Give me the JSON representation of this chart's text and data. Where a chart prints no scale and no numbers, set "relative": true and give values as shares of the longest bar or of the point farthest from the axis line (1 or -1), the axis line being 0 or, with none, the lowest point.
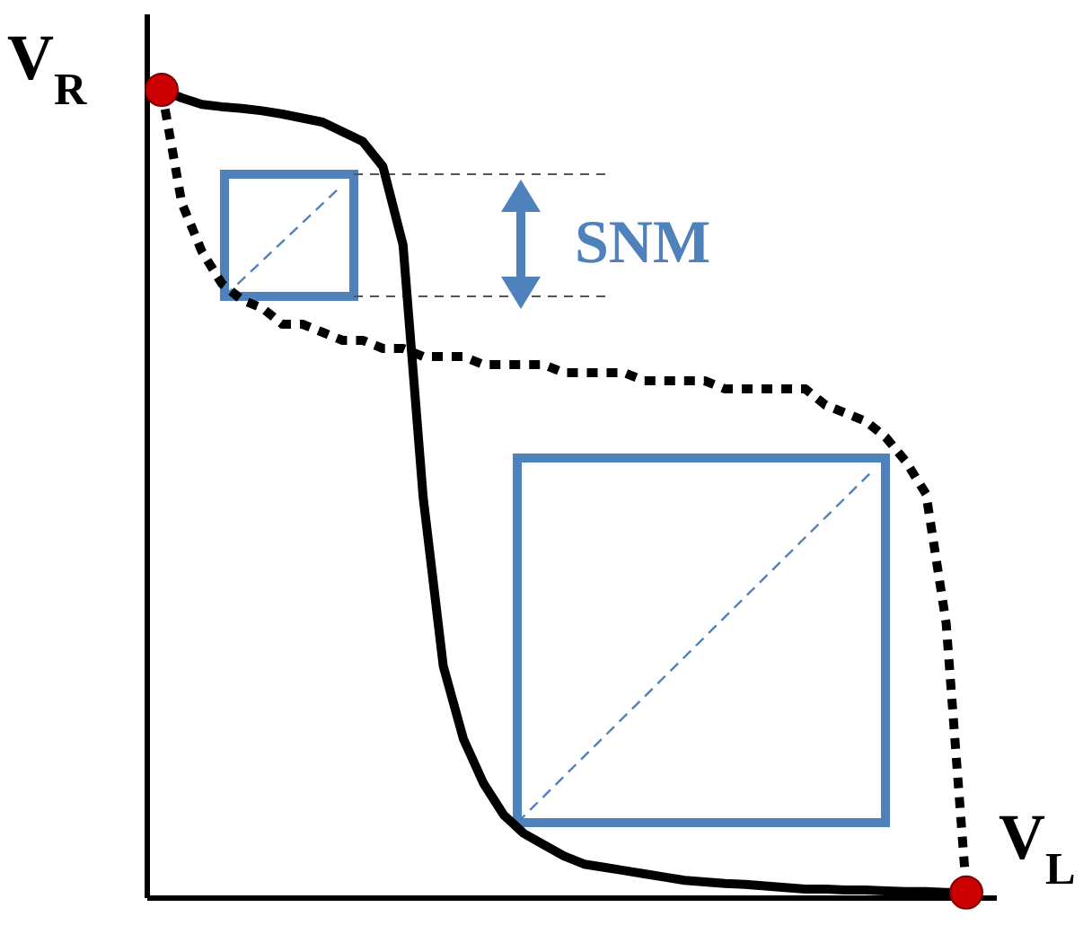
{
  "chart_data": {
    "type": "line",
    "relative": true,
    "xlabel": "V$_{L}$",
    "ylabel": "V$_{R}$",
    "annotations": [
      "SNM"
    ],
    "categories": [
      null,
      null,
      null,
      null,
      null,
      null,
      null,
      null,
      null,
      null,
      null,
      null,
      null,
      null,
      null,
      null,
      null,
      null,
      null,
      null,
      null,
      null,
      null,
      null,
      null,
      null,
      null,
      null,
      null,
      null,
      null,
      null,
      null,
      null,
      null,
      null,
      null,
      null,
      null,
      null,
      null
    ],
    "series": [
      {
        "color": "#000000",
        "line_style": "solid",
        "values": [
          1.0,
          0.99,
          0.982,
          0.979,
          0.977,
          0.974,
          0.97,
          0.965,
          0.96,
          0.948,
          0.936,
          0.905,
          0.808,
          0.496,
          0.287,
          0.197,
          0.142,
          0.103,
          0.08,
          0.066,
          0.052,
          0.042,
          0.038,
          0.034,
          0.03,
          0.026,
          0.022,
          0.02,
          0.018,
          0.017,
          0.015,
          0.013,
          0.011,
          0.011,
          0.01,
          0.01,
          0.009,
          0.008,
          0.008,
          0.007,
          0.007
        ]
      },
      {
        "color": "#000000",
        "line_style": "dotted",
        "values": [
          1.0,
          0.86,
          0.8,
          0.76,
          0.74,
          0.73,
          0.71,
          0.71,
          0.7,
          0.69,
          0.69,
          0.68,
          0.68,
          0.67,
          0.67,
          0.67,
          0.66,
          0.66,
          0.66,
          0.66,
          0.65,
          0.65,
          0.65,
          0.65,
          0.64,
          0.64,
          0.64,
          0.64,
          0.63,
          0.63,
          0.63,
          0.63,
          0.63,
          0.61,
          0.6,
          0.59,
          0.57,
          0.54,
          0.5,
          0.34,
          0.01
        ]
      }
    ]
  }
}
